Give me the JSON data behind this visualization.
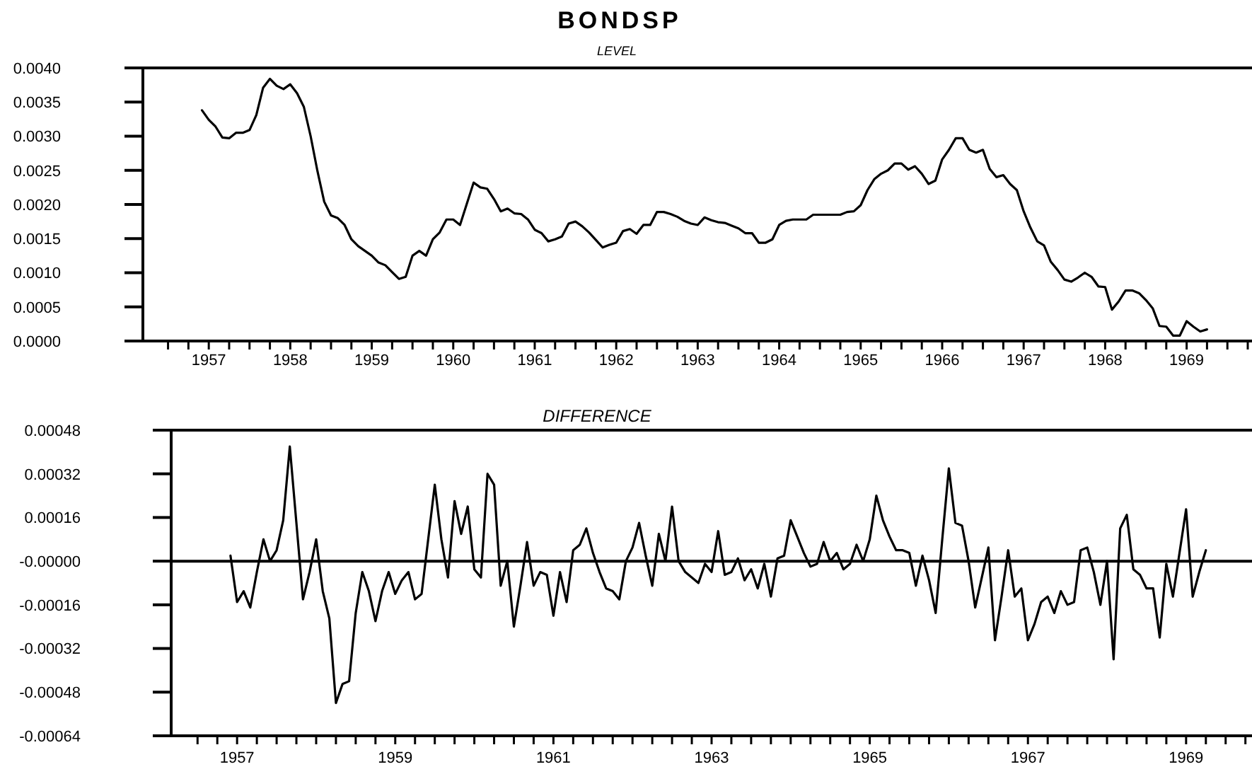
{
  "chart_data": [
    {
      "type": "line",
      "title": "BONDSP",
      "subtitle": "LEVEL",
      "x": [
        "1956-12",
        "1957-01",
        "1957-02",
        "1957-03",
        "1957-04",
        "1957-05",
        "1957-06",
        "1957-07",
        "1957-08",
        "1957-09",
        "1957-10",
        "1957-11",
        "1957-12",
        "1958-01",
        "1958-02",
        "1958-03",
        "1958-04",
        "1958-05",
        "1958-06",
        "1958-07",
        "1958-08",
        "1958-09",
        "1958-10",
        "1958-11",
        "1958-12",
        "1959-01",
        "1959-02",
        "1959-03",
        "1959-04",
        "1959-05",
        "1959-06",
        "1959-07",
        "1959-08",
        "1959-09",
        "1959-10",
        "1959-11",
        "1959-12",
        "1960-01",
        "1960-02",
        "1960-03",
        "1960-04",
        "1960-05",
        "1960-06",
        "1960-07",
        "1960-08",
        "1960-09",
        "1960-10",
        "1960-11",
        "1960-12",
        "1961-01",
        "1961-02",
        "1961-03",
        "1961-04",
        "1961-05",
        "1961-06",
        "1961-07",
        "1961-08",
        "1961-09",
        "1961-10",
        "1961-11",
        "1961-12",
        "1962-01",
        "1962-02",
        "1962-03",
        "1962-04",
        "1962-05",
        "1962-06",
        "1962-07",
        "1962-08",
        "1962-09",
        "1962-10",
        "1962-11",
        "1962-12",
        "1963-01",
        "1963-02",
        "1963-03",
        "1963-04",
        "1963-05",
        "1963-06",
        "1963-07",
        "1963-08",
        "1963-09",
        "1963-10",
        "1963-11",
        "1963-12",
        "1964-01",
        "1964-02",
        "1964-03",
        "1964-04",
        "1964-05",
        "1964-06",
        "1964-07",
        "1964-08",
        "1964-09",
        "1964-10",
        "1964-11",
        "1964-12",
        "1965-01",
        "1965-02",
        "1965-03",
        "1965-04",
        "1965-05",
        "1965-06",
        "1965-07",
        "1965-08",
        "1965-09",
        "1965-10",
        "1965-11",
        "1965-12",
        "1966-01",
        "1966-02",
        "1966-03",
        "1966-04",
        "1966-05",
        "1966-06",
        "1966-07",
        "1966-08",
        "1966-09",
        "1966-10",
        "1966-11",
        "1966-12",
        "1967-01",
        "1967-02",
        "1967-03",
        "1967-04",
        "1967-05",
        "1967-06",
        "1967-07",
        "1967-08",
        "1967-09",
        "1967-10",
        "1967-11",
        "1967-12",
        "1968-01",
        "1968-02",
        "1968-03",
        "1968-04",
        "1968-05",
        "1968-06",
        "1968-07",
        "1968-08",
        "1968-09",
        "1968-10",
        "1968-11",
        "1968-12",
        "1969-01",
        "1969-02",
        "1969-03",
        "1969-04"
      ],
      "series": [
        {
          "color": "#000000",
          "values": [
            0.00338,
            0.00324,
            0.00314,
            0.00298,
            0.00297,
            0.00305,
            0.00305,
            0.00309,
            0.00331,
            0.00371,
            0.00384,
            0.00374,
            0.00369,
            0.00376,
            0.00363,
            0.00343,
            0.003,
            0.00249,
            0.00204,
            0.00184,
            0.0018,
            0.0017,
            0.00149,
            0.00139,
            0.00132,
            0.00125,
            0.00115,
            0.00111,
            0.00101,
            0.00091,
            0.00094,
            0.00125,
            0.00132,
            0.00125,
            0.00149,
            0.00159,
            0.00178,
            0.00178,
            0.0017,
            0.00201,
            0.00232,
            0.00225,
            0.00223,
            0.00208,
            0.0019,
            0.00194,
            0.00187,
            0.00186,
            0.00178,
            0.00163,
            0.00158,
            0.00146,
            0.00149,
            0.00153,
            0.00172,
            0.00175,
            0.00168,
            0.00159,
            0.00148,
            0.00137,
            0.00141,
            0.00144,
            0.00161,
            0.00164,
            0.00157,
            0.0017,
            0.0017,
            0.00189,
            0.00189,
            0.00186,
            0.00182,
            0.00176,
            0.00172,
            0.0017,
            0.00181,
            0.00177,
            0.00174,
            0.00173,
            0.00169,
            0.00165,
            0.00158,
            0.00158,
            0.00144,
            0.00144,
            0.00149,
            0.0017,
            0.00176,
            0.00178,
            0.00178,
            0.00178,
            0.00185,
            0.00185,
            0.00185,
            0.00185,
            0.00185,
            0.00189,
            0.0019,
            0.00199,
            0.00221,
            0.00237,
            0.00245,
            0.0025,
            0.0026,
            0.0026,
            0.00251,
            0.00256,
            0.00245,
            0.0023,
            0.00235,
            0.00266,
            0.0028,
            0.00297,
            0.00297,
            0.0028,
            0.00276,
            0.0028,
            0.00252,
            0.0024,
            0.00243,
            0.0023,
            0.00221,
            0.0019,
            0.00166,
            0.00146,
            0.0014,
            0.00116,
            0.00104,
            0.0009,
            0.00087,
            0.00093,
            0.001,
            0.00094,
            0.0008,
            0.00079,
            0.00046,
            0.00058,
            0.00074,
            0.00074,
            0.0007,
            0.0006,
            0.00048,
            0.00022,
            0.00021,
            8e-05,
            8e-05,
            0.00029,
            0.00021,
            0.00014,
            0.00017
          ]
        }
      ],
      "xlim": [
        "1956-03-10",
        "1969-10-20"
      ],
      "xticks": [
        {
          "value": "1956-07",
          "label": null
        },
        {
          "value": "1956-10",
          "label": null
        },
        "1957",
        {
          "value": "1957-04",
          "label": null
        },
        {
          "value": "1957-07",
          "label": null
        },
        {
          "value": "1957-10",
          "label": null
        },
        "1958",
        {
          "value": "1958-04",
          "label": null
        },
        {
          "value": "1958-07",
          "label": null
        },
        {
          "value": "1958-10",
          "label": null
        },
        "1959",
        {
          "value": "1959-04",
          "label": null
        },
        {
          "value": "1959-07",
          "label": null
        },
        {
          "value": "1959-10",
          "label": null
        },
        "1960",
        {
          "value": "1960-04",
          "label": null
        },
        {
          "value": "1960-07",
          "label": null
        },
        {
          "value": "1960-10",
          "label": null
        },
        "1961",
        {
          "value": "1961-04",
          "label": null
        },
        {
          "value": "1961-07",
          "label": null
        },
        {
          "value": "1961-10",
          "label": null
        },
        "1962",
        {
          "value": "1962-04",
          "label": null
        },
        {
          "value": "1962-07",
          "label": null
        },
        {
          "value": "1962-10",
          "label": null
        },
        "1963",
        {
          "value": "1963-04",
          "label": null
        },
        {
          "value": "1963-07",
          "label": null
        },
        {
          "value": "1963-10",
          "label": null
        },
        "1964",
        {
          "value": "1964-04",
          "label": null
        },
        {
          "value": "1964-07",
          "label": null
        },
        {
          "value": "1964-10",
          "label": null
        },
        "1965",
        {
          "value": "1965-04",
          "label": null
        },
        {
          "value": "1965-07",
          "label": null
        },
        {
          "value": "1965-10",
          "label": null
        },
        "1966",
        {
          "value": "1966-04",
          "label": null
        },
        {
          "value": "1966-07",
          "label": null
        },
        {
          "value": "1966-10",
          "label": null
        },
        "1967",
        {
          "value": "1967-04",
          "label": null
        },
        {
          "value": "1967-07",
          "label": null
        },
        {
          "value": "1967-10",
          "label": null
        },
        "1968",
        {
          "value": "1968-04",
          "label": null
        },
        {
          "value": "1968-07",
          "label": null
        },
        {
          "value": "1968-10",
          "label": null
        },
        "1969",
        {
          "value": "1969-04",
          "label": null
        },
        {
          "value": "1969-07",
          "label": null
        },
        {
          "value": "1969-10",
          "label": null
        }
      ],
      "ylim": [
        0,
        0.004
      ],
      "yticks": [
        {
          "value": 0,
          "label": "0.0000"
        },
        {
          "value": 0.0005,
          "label": "0.0005"
        },
        {
          "value": 0.001,
          "label": "0.0010"
        },
        {
          "value": 0.0015,
          "label": "0.0015"
        },
        {
          "value": 0.002,
          "label": "0.0020"
        },
        {
          "value": 0.0025,
          "label": "0.0025"
        },
        {
          "value": 0.003,
          "label": "0.0030"
        },
        {
          "value": 0.0035,
          "label": "0.0035"
        },
        {
          "value": 0.004,
          "label": "0.0040"
        }
      ],
      "marker": "none",
      "line_style": "solid"
    },
    {
      "type": "line",
      "title": "DIFFERENCE",
      "x": [
        "1956-12",
        "1957-01",
        "1957-02",
        "1957-03",
        "1957-04",
        "1957-05",
        "1957-06",
        "1957-07",
        "1957-08",
        "1957-09",
        "1957-10",
        "1957-11",
        "1957-12",
        "1958-01",
        "1958-02",
        "1958-03",
        "1958-04",
        "1958-05",
        "1958-06",
        "1958-07",
        "1958-08",
        "1958-09",
        "1958-10",
        "1958-11",
        "1958-12",
        "1959-01",
        "1959-02",
        "1959-03",
        "1959-04",
        "1959-05",
        "1959-06",
        "1959-07",
        "1959-08",
        "1959-09",
        "1959-10",
        "1959-11",
        "1959-12",
        "1960-01",
        "1960-02",
        "1960-03",
        "1960-04",
        "1960-05",
        "1960-06",
        "1960-07",
        "1960-08",
        "1960-09",
        "1960-10",
        "1960-11",
        "1960-12",
        "1961-01",
        "1961-02",
        "1961-03",
        "1961-04",
        "1961-05",
        "1961-06",
        "1961-07",
        "1961-08",
        "1961-09",
        "1961-10",
        "1961-11",
        "1961-12",
        "1962-01",
        "1962-02",
        "1962-03",
        "1962-04",
        "1962-05",
        "1962-06",
        "1962-07",
        "1962-08",
        "1962-09",
        "1962-10",
        "1962-11",
        "1962-12",
        "1963-01",
        "1963-02",
        "1963-03",
        "1963-04",
        "1963-05",
        "1963-06",
        "1963-07",
        "1963-08",
        "1963-09",
        "1963-10",
        "1963-11",
        "1963-12",
        "1964-01",
        "1964-02",
        "1964-03",
        "1964-04",
        "1964-05",
        "1964-06",
        "1964-07",
        "1964-08",
        "1964-09",
        "1964-10",
        "1964-11",
        "1964-12",
        "1965-01",
        "1965-02",
        "1965-03",
        "1965-04",
        "1965-05",
        "1965-06",
        "1965-07",
        "1965-08",
        "1965-09",
        "1965-10",
        "1965-11",
        "1965-12",
        "1966-01",
        "1966-02",
        "1966-03",
        "1966-04",
        "1966-05",
        "1966-06",
        "1966-07",
        "1966-08",
        "1966-09",
        "1966-10",
        "1966-11",
        "1966-12",
        "1967-01",
        "1967-02",
        "1967-03",
        "1967-04",
        "1967-05",
        "1967-06",
        "1967-07",
        "1967-08",
        "1967-09",
        "1967-10",
        "1967-11",
        "1967-12",
        "1968-01",
        "1968-02",
        "1968-03",
        "1968-04",
        "1968-05",
        "1968-06",
        "1968-07",
        "1968-08",
        "1968-09",
        "1968-10",
        "1968-11",
        "1968-12",
        "1969-01",
        "1969-02",
        "1969-03",
        "1969-04"
      ],
      "series": [
        {
          "color": "#000000",
          "values": [
            2e-05,
            -0.00015,
            -0.00011,
            -0.00017,
            -4e-05,
            8e-05,
            0,
            4e-05,
            0.00015,
            0.00042,
            0.00014,
            -0.00014,
            -4e-05,
            8e-05,
            -0.00011,
            -0.00021,
            -0.00052,
            -0.00045,
            -0.00044,
            -0.00019,
            -4e-05,
            -0.00011,
            -0.00022,
            -0.00011,
            -4e-05,
            -0.00012,
            -7e-05,
            -4e-05,
            -0.00014,
            -0.00012,
            8e-05,
            0.00028,
            8e-05,
            -6e-05,
            0.00022,
            0.0001,
            0.0002,
            -3e-05,
            -6e-05,
            0.00032,
            0.00028,
            -9e-05,
            0,
            -0.00024,
            -9e-05,
            7e-05,
            -9e-05,
            -4e-05,
            -5e-05,
            -0.0002,
            -4e-05,
            -0.00015,
            4e-05,
            6e-05,
            0.00012,
            3e-05,
            -4e-05,
            -0.0001,
            -0.00011,
            -0.00014,
            0,
            5e-05,
            0.00014,
            2e-05,
            -9e-05,
            0.0001,
            0,
            0.0002,
            0,
            -4e-05,
            -6e-05,
            -8e-05,
            -1e-05,
            -4e-05,
            0.00011,
            -5e-05,
            -4e-05,
            1e-05,
            -7e-05,
            -3e-05,
            -0.0001,
            -1e-05,
            -0.00013,
            1e-05,
            2e-05,
            0.00015,
            9e-05,
            3e-05,
            -2e-05,
            -1e-05,
            7e-05,
            0,
            3e-05,
            -3e-05,
            -1e-05,
            6e-05,
            0,
            8e-05,
            0.00024,
            0.00015,
            9e-05,
            4e-05,
            4e-05,
            3e-05,
            -9e-05,
            2e-05,
            -7e-05,
            -0.00019,
            8e-05,
            0.00034,
            0.00014,
            0.00013,
            0,
            -0.00017,
            -6e-05,
            5e-05,
            -0.00029,
            -0.00013,
            4e-05,
            -0.00013,
            -0.0001,
            -0.00029,
            -0.00023,
            -0.00015,
            -0.00013,
            -0.00019,
            -0.00011,
            -0.00016,
            -0.00015,
            4e-05,
            5e-05,
            -4e-05,
            -0.00016,
            0,
            -0.00036,
            0.00012,
            0.00017,
            -3e-05,
            -5e-05,
            -0.0001,
            -0.0001,
            -0.00028,
            -1e-05,
            -0.00013,
            3e-05,
            0.00019,
            -0.00013,
            -4e-05,
            4e-05
          ]
        }
      ],
      "xlim": [
        "1956-03",
        "1969-11"
      ],
      "xticks": [
        {
          "value": "1956-07",
          "label": null
        },
        {
          "value": "1956-10",
          "label": null
        },
        "1957",
        {
          "value": "1957-04",
          "label": null
        },
        {
          "value": "1957-07",
          "label": null
        },
        {
          "value": "1957-10",
          "label": null
        },
        {
          "value": "1958",
          "label": null
        },
        {
          "value": "1958-04",
          "label": null
        },
        {
          "value": "1958-07",
          "label": null
        },
        {
          "value": "1958-10",
          "label": null
        },
        "1959",
        {
          "value": "1959-04",
          "label": null
        },
        {
          "value": "1959-07",
          "label": null
        },
        {
          "value": "1959-10",
          "label": null
        },
        {
          "value": "1960",
          "label": null
        },
        {
          "value": "1960-04",
          "label": null
        },
        {
          "value": "1960-07",
          "label": null
        },
        {
          "value": "1960-10",
          "label": null
        },
        "1961",
        {
          "value": "1961-04",
          "label": null
        },
        {
          "value": "1961-07",
          "label": null
        },
        {
          "value": "1961-10",
          "label": null
        },
        {
          "value": "1962",
          "label": null
        },
        {
          "value": "1962-04",
          "label": null
        },
        {
          "value": "1962-07",
          "label": null
        },
        {
          "value": "1962-10",
          "label": null
        },
        "1963",
        {
          "value": "1963-04",
          "label": null
        },
        {
          "value": "1963-07",
          "label": null
        },
        {
          "value": "1963-10",
          "label": null
        },
        {
          "value": "1964",
          "label": null
        },
        {
          "value": "1964-04",
          "label": null
        },
        {
          "value": "1964-07",
          "label": null
        },
        {
          "value": "1964-10",
          "label": null
        },
        "1965",
        {
          "value": "1965-04",
          "label": null
        },
        {
          "value": "1965-07",
          "label": null
        },
        {
          "value": "1965-10",
          "label": null
        },
        {
          "value": "1966",
          "label": null
        },
        {
          "value": "1966-04",
          "label": null
        },
        {
          "value": "1966-07",
          "label": null
        },
        {
          "value": "1966-10",
          "label": null
        },
        "1967",
        {
          "value": "1967-04",
          "label": null
        },
        {
          "value": "1967-07",
          "label": null
        },
        {
          "value": "1967-10",
          "label": null
        },
        {
          "value": "1968",
          "label": null
        },
        {
          "value": "1968-04",
          "label": null
        },
        {
          "value": "1968-07",
          "label": null
        },
        {
          "value": "1968-10",
          "label": null
        },
        "1969",
        {
          "value": "1969-04",
          "label": null
        },
        {
          "value": "1969-07",
          "label": null
        },
        {
          "value": "1969-10",
          "label": null
        }
      ],
      "ylim": [
        -0.00064,
        0.00048
      ],
      "yticks": [
        {
          "value": -0.00064,
          "label": "-0.00064"
        },
        {
          "value": -0.00048,
          "label": "-0.00048"
        },
        {
          "value": -0.00032,
          "label": "-0.00032"
        },
        {
          "value": -0.00016,
          "label": "-0.00016"
        },
        {
          "value": 0,
          "label": "-0.00000"
        },
        {
          "value": 0.00016,
          "label": "0.00016"
        },
        {
          "value": 0.00032,
          "label": "0.00032"
        },
        {
          "value": 0.00048,
          "label": "0.00048"
        }
      ],
      "ref_lines": [
        {
          "axis": "y",
          "value": 0,
          "color": "#000000"
        }
      ],
      "marker": "none",
      "line_style": "solid"
    }
  ]
}
